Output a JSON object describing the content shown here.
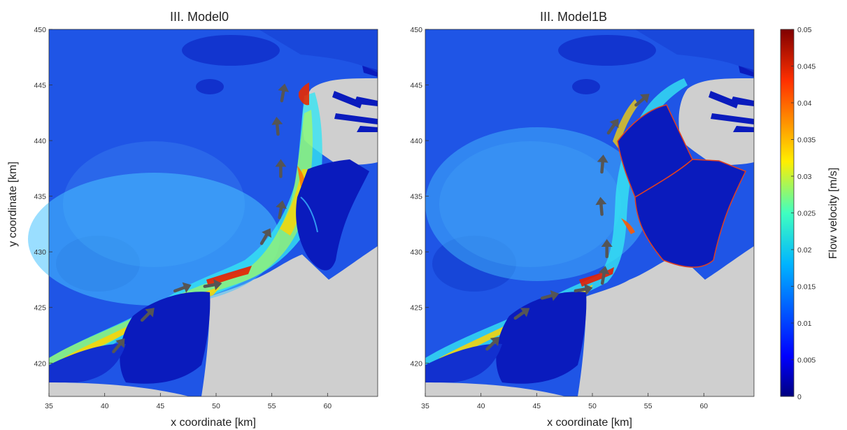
{
  "chart_data": [
    {
      "type": "heatmap",
      "title": "III. Model0",
      "xlabel": "x coordinate [km]",
      "ylabel": "y coordinate [km]",
      "xlim": [
        35,
        64.5
      ],
      "ylim": [
        417,
        450
      ],
      "xticks": [
        "35",
        "40",
        "45",
        "50",
        "55",
        "60"
      ],
      "yticks": [
        "420",
        "425",
        "430",
        "435",
        "440",
        "445",
        "450"
      ],
      "arrows": [
        {
          "x": 41.2,
          "y": 421.5,
          "angle_deg": 50
        },
        {
          "x": 43.8,
          "y": 424.3,
          "angle_deg": 45
        },
        {
          "x": 46.9,
          "y": 426.7,
          "angle_deg": 20
        },
        {
          "x": 49.6,
          "y": 427.0,
          "angle_deg": 10
        },
        {
          "x": 54.4,
          "y": 431.3,
          "angle_deg": 60
        },
        {
          "x": 55.8,
          "y": 433.7,
          "angle_deg": 80
        },
        {
          "x": 55.8,
          "y": 437.4,
          "angle_deg": 90
        },
        {
          "x": 55.5,
          "y": 441.2,
          "angle_deg": 95
        },
        {
          "x": 56.0,
          "y": 444.2,
          "angle_deg": 80
        }
      ]
    },
    {
      "type": "heatmap",
      "title": "III. Model1B",
      "xlabel": "x coordinate [km]",
      "ylabel": "",
      "xlim": [
        35,
        64.5
      ],
      "ylim": [
        417,
        450
      ],
      "xticks": [
        "35",
        "40",
        "45",
        "50",
        "55",
        "60"
      ],
      "yticks": [
        "420",
        "425",
        "430",
        "435",
        "440",
        "445",
        "450"
      ],
      "arrows": [
        {
          "x": 41.0,
          "y": 421.7,
          "angle_deg": 45
        },
        {
          "x": 43.6,
          "y": 424.4,
          "angle_deg": 35
        },
        {
          "x": 46.1,
          "y": 426.0,
          "angle_deg": 15
        },
        {
          "x": 49.1,
          "y": 426.6,
          "angle_deg": 10
        },
        {
          "x": 51.0,
          "y": 427.8,
          "angle_deg": 80
        },
        {
          "x": 51.3,
          "y": 430.2,
          "angle_deg": 90
        },
        {
          "x": 50.8,
          "y": 434.0,
          "angle_deg": 95
        },
        {
          "x": 50.9,
          "y": 437.8,
          "angle_deg": 85
        },
        {
          "x": 51.8,
          "y": 441.2,
          "angle_deg": 55
        },
        {
          "x": 54.4,
          "y": 443.6,
          "angle_deg": 40
        }
      ]
    }
  ],
  "colorbar": {
    "label": "Flow velocity [m/s]",
    "range": [
      0,
      0.05
    ],
    "ticks": [
      "0",
      "0.005",
      "0.01",
      "0.015",
      "0.02",
      "0.025",
      "0.03",
      "0.035",
      "0.04",
      "0.045",
      "0.05"
    ],
    "colormap": "jet"
  },
  "colors": {
    "land": "#cfcfcf",
    "water_background": "#1f55e6",
    "arrow": "#555555"
  }
}
